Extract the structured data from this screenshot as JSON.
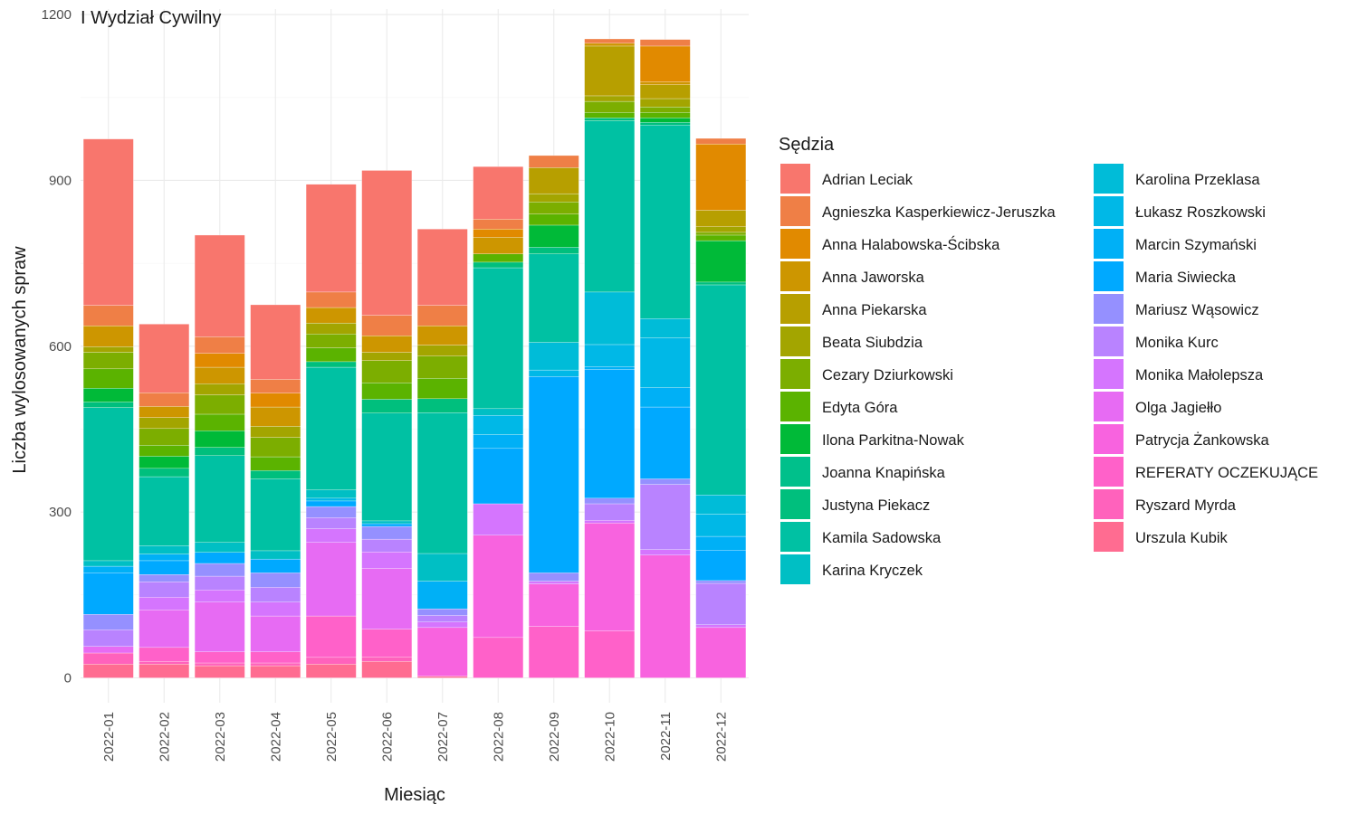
{
  "chart_data": {
    "type": "bar",
    "stacked": true,
    "title": "I Wydział Cywilny",
    "xlabel": "Miesiąc",
    "ylabel": "Liczba wylosowanych spraw",
    "ylim": [
      -45,
      1210
    ],
    "yticks": [
      0,
      300,
      600,
      900,
      1200
    ],
    "grid": true,
    "legend_title": "Sędzia",
    "legend_position": "right",
    "categories": [
      "2022-01",
      "2022-02",
      "2022-03",
      "2022-04",
      "2022-05",
      "2022-06",
      "2022-07",
      "2022-08",
      "2022-09",
      "2022-10",
      "2022-11",
      "2022-12"
    ],
    "series": [
      {
        "name": "Urszula Kubik",
        "color": "#FF6C91",
        "values": [
          25,
          25,
          22,
          22,
          25,
          30,
          3,
          0,
          0,
          0,
          0,
          0
        ]
      },
      {
        "name": "Ryszard Myrda",
        "color": "#FF62BC",
        "values": [
          20,
          5,
          5,
          5,
          12,
          8,
          0,
          0,
          0,
          0,
          0,
          0
        ]
      },
      {
        "name": "REFERATY OCZEKUJĄCE",
        "color": "#FF61C9",
        "values": [
          0,
          25,
          20,
          20,
          75,
          50,
          0,
          73,
          93,
          85,
          0,
          0
        ]
      },
      {
        "name": "Patrycja Żankowska",
        "color": "#F863DF",
        "values": [
          0,
          0,
          0,
          0,
          0,
          0,
          88,
          185,
          77,
          195,
          222,
          91
        ]
      },
      {
        "name": "Olga Jagiełło",
        "color": "#E76BF3",
        "values": [
          12,
          68,
          90,
          65,
          133,
          110,
          0,
          0,
          0,
          0,
          0,
          0
        ]
      },
      {
        "name": "Monika Małolepsza",
        "color": "#D575FE",
        "values": [
          0,
          23,
          22,
          25,
          25,
          30,
          10,
          57,
          5,
          5,
          10,
          5
        ]
      },
      {
        "name": "Monika Kurc",
        "color": "#B983FF",
        "values": [
          30,
          28,
          25,
          27,
          20,
          23,
          12,
          0,
          0,
          30,
          118,
          75
        ]
      },
      {
        "name": "Mariusz Wąsowicz",
        "color": "#9590FF",
        "values": [
          28,
          13,
          23,
          26,
          20,
          23,
          12,
          0,
          15,
          10,
          10,
          5
        ]
      },
      {
        "name": "Maria Siwiecka",
        "color": "#00A9FF",
        "values": [
          75,
          25,
          20,
          25,
          10,
          5,
          0,
          100,
          355,
          233,
          130,
          55
        ]
      },
      {
        "name": "Marcin Szymański",
        "color": "#00B0F6",
        "values": [
          12,
          12,
          0,
          0,
          0,
          0,
          50,
          25,
          0,
          5,
          35,
          25
        ]
      },
      {
        "name": "Łukasz Roszkowski",
        "color": "#00B8E7",
        "values": [
          0,
          0,
          0,
          0,
          5,
          0,
          0,
          35,
          12,
          40,
          90,
          40
        ]
      },
      {
        "name": "Karolina Przeklasa",
        "color": "#00BCD8",
        "values": [
          0,
          0,
          0,
          0,
          0,
          0,
          0,
          0,
          50,
          95,
          35,
          35
        ]
      },
      {
        "name": "Karina Kryczek",
        "color": "#00BFC4",
        "values": [
          10,
          15,
          18,
          15,
          15,
          5,
          50,
          12,
          0,
          0,
          0,
          0
        ]
      },
      {
        "name": "Kamila Sadowska",
        "color": "#00C1A3",
        "values": [
          277,
          125,
          157,
          130,
          222,
          195,
          255,
          255,
          160,
          310,
          350,
          380
        ]
      },
      {
        "name": "Justyna Piekacz",
        "color": "#00BF7D",
        "values": [
          10,
          15,
          15,
          15,
          10,
          25,
          25,
          10,
          12,
          5,
          5,
          5
        ]
      },
      {
        "name": "Joanna Knapińska",
        "color": "#00C08B",
        "values": [
          0,
          0,
          0,
          0,
          0,
          0,
          0,
          0,
          0,
          0,
          0,
          0
        ]
      },
      {
        "name": "Ilona Parkitna-Nowak",
        "color": "#00BA38",
        "values": [
          25,
          22,
          30,
          0,
          0,
          0,
          0,
          0,
          40,
          0,
          8,
          75
        ]
      },
      {
        "name": "Edyta Góra",
        "color": "#5BB300",
        "values": [
          35,
          20,
          30,
          25,
          25,
          30,
          37,
          15,
          20,
          10,
          10,
          10
        ]
      },
      {
        "name": "Cezary Dziurkowski",
        "color": "#7CAE00",
        "values": [
          30,
          30,
          35,
          35,
          25,
          40,
          40,
          0,
          22,
          20,
          10,
          5
        ]
      },
      {
        "name": "Beata Siubdzia",
        "color": "#A3A500",
        "values": [
          10,
          20,
          20,
          20,
          20,
          15,
          20,
          0,
          15,
          10,
          15,
          10
        ]
      },
      {
        "name": "Anna Piekarska",
        "color": "#B79F00",
        "values": [
          0,
          0,
          0,
          0,
          0,
          0,
          0,
          0,
          47,
          90,
          25,
          30
        ]
      },
      {
        "name": "Anna Jaworska",
        "color": "#CD9600",
        "values": [
          38,
          20,
          30,
          35,
          28,
          30,
          35,
          30,
          0,
          5,
          5,
          0
        ]
      },
      {
        "name": "Anna Halabowska-Ścibska",
        "color": "#E18A00",
        "values": [
          0,
          0,
          25,
          25,
          0,
          0,
          0,
          15,
          0,
          0,
          65,
          120
        ]
      },
      {
        "name": "Agnieszka Kasperkiewicz-Jeruszka",
        "color": "#EF7F46",
        "values": [
          37,
          25,
          30,
          25,
          28,
          37,
          37,
          18,
          22,
          8,
          12,
          10
        ]
      },
      {
        "name": "Adrian Leciak",
        "color": "#F8766D",
        "values": [
          301,
          124,
          184,
          135,
          195,
          262,
          138,
          95,
          0,
          0,
          0,
          0
        ]
      }
    ]
  },
  "legend_order": [
    "Adrian Leciak",
    "Agnieszka Kasperkiewicz-Jeruszka",
    "Anna Halabowska-Ścibska",
    "Anna Jaworska",
    "Anna Piekarska",
    "Beata Siubdzia",
    "Cezary Dziurkowski",
    "Edyta Góra",
    "Ilona Parkitna-Nowak",
    "Joanna Knapińska",
    "Justyna Piekacz",
    "Kamila Sadowska",
    "Karina Kryczek",
    "Karolina Przeklasa",
    "Łukasz Roszkowski",
    "Marcin Szymański",
    "Maria Siwiecka",
    "Mariusz Wąsowicz",
    "Monika Kurc",
    "Monika Małolepsza",
    "Olga Jagiełło",
    "Patrycja Żankowska",
    "REFERATY OCZEKUJĄCE",
    "Ryszard Myrda",
    "Urszula Kubik"
  ]
}
